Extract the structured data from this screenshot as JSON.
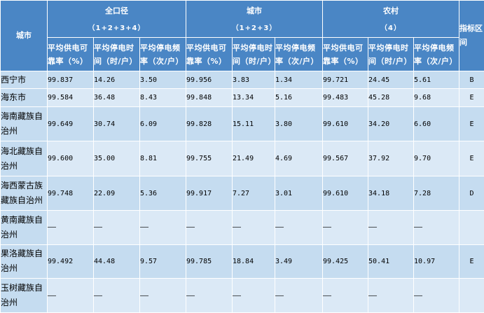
{
  "header": {
    "city_label": "城市",
    "index_label": "指标区间",
    "groups": [
      {
        "title": "全口径",
        "code": "（1+2+3+4）"
      },
      {
        "title": "城市",
        "code": "（1+2+3）"
      },
      {
        "title": "农村",
        "code": "（4）"
      }
    ],
    "metrics": [
      "平均供电可靠率（%）",
      "平均停电时间（时/户）",
      "平均停电频率（次/户）"
    ]
  },
  "rows": [
    {
      "city": "西宁市",
      "values": [
        "99.837",
        "14.26",
        "3.50",
        "99.956",
        "3.83",
        "1.34",
        "99.721",
        "24.45",
        "5.61"
      ],
      "level": "B"
    },
    {
      "city": "海东市",
      "values": [
        "99.584",
        "36.48",
        "8.43",
        "99.848",
        "13.34",
        "5.16",
        "99.483",
        "45.28",
        "9.68"
      ],
      "level": "E"
    },
    {
      "city": "海南藏族自治州",
      "values": [
        "99.649",
        "30.74",
        "6.09",
        "99.828",
        "15.11",
        "3.80",
        "99.610",
        "34.20",
        "6.60"
      ],
      "level": "E"
    },
    {
      "city": "海北藏族自治州",
      "values": [
        "99.600",
        "35.00",
        "8.81",
        "99.755",
        "21.49",
        "4.69",
        "99.567",
        "37.92",
        "9.70"
      ],
      "level": "E"
    },
    {
      "city": "海西蒙古族藏族自治州",
      "values": [
        "99.748",
        "22.09",
        "5.36",
        "99.917",
        "7.27",
        "3.01",
        "99.610",
        "34.18",
        "7.28"
      ],
      "level": "D"
    },
    {
      "city": "黄南藏族自治州",
      "values": [
        "——",
        "——",
        "——",
        "——",
        "——",
        "——",
        "——",
        "——",
        "——"
      ],
      "level": ""
    },
    {
      "city": "果洛藏族自治州",
      "values": [
        "99.492",
        "44.48",
        "9.57",
        "99.785",
        "18.84",
        "3.49",
        "99.425",
        "50.41",
        "10.97"
      ],
      "level": "E"
    },
    {
      "city": "玉树藏族自治州",
      "values": [
        "——",
        "——",
        "——",
        "——",
        "——",
        "——",
        "——",
        "——",
        "——"
      ],
      "level": ""
    }
  ]
}
